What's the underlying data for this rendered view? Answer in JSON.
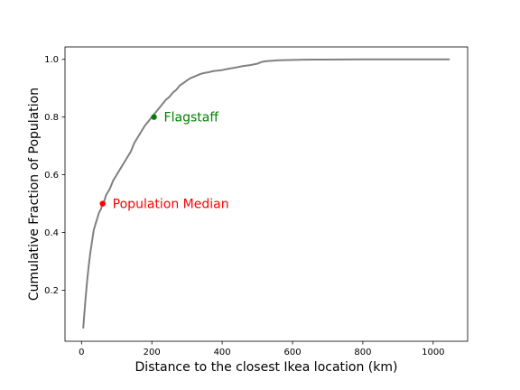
{
  "chart_data": {
    "type": "line",
    "title": "",
    "xlabel": "Distance to the closest Ikea location (km)",
    "ylabel": "Cumulative Fraction of Population",
    "xlim": [
      -47,
      1098
    ],
    "ylim": [
      0.023,
      1.043
    ],
    "xticks": [
      0,
      200,
      400,
      600,
      800,
      1000
    ],
    "yticks": [
      0.2,
      0.4,
      0.6,
      0.8,
      1.0
    ],
    "xtick_labels": [
      "0",
      "200",
      "400",
      "600",
      "800",
      "1000"
    ],
    "ytick_labels": [
      "0.2",
      "0.4",
      "0.6",
      "0.8",
      "1.0"
    ],
    "grid": false,
    "series": [
      {
        "color": "#808080",
        "x": [
          5,
          10,
          15,
          20,
          25,
          30,
          35,
          40,
          45,
          50,
          55,
          60,
          65,
          70,
          80,
          90,
          100,
          110,
          120,
          130,
          140,
          150,
          160,
          170,
          180,
          190,
          200,
          210,
          220,
          230,
          240,
          250,
          260,
          270,
          280,
          290,
          300,
          310,
          320,
          330,
          340,
          350,
          360,
          370,
          380,
          400,
          420,
          440,
          460,
          480,
          500,
          510,
          520,
          530,
          540,
          560,
          600,
          650,
          700,
          800,
          900,
          1000,
          1045
        ],
        "y": [
          0.07,
          0.15,
          0.22,
          0.28,
          0.33,
          0.37,
          0.41,
          0.43,
          0.45,
          0.47,
          0.48,
          0.5,
          0.51,
          0.53,
          0.55,
          0.58,
          0.6,
          0.62,
          0.64,
          0.66,
          0.68,
          0.71,
          0.73,
          0.75,
          0.77,
          0.785,
          0.8,
          0.815,
          0.83,
          0.845,
          0.86,
          0.87,
          0.885,
          0.895,
          0.91,
          0.918,
          0.927,
          0.935,
          0.94,
          0.945,
          0.95,
          0.953,
          0.955,
          0.958,
          0.96,
          0.963,
          0.968,
          0.972,
          0.977,
          0.98,
          0.985,
          0.99,
          0.993,
          0.994,
          0.995,
          0.997,
          0.998,
          0.999,
          0.999,
          1.0,
          1.0,
          1.0,
          1.0
        ]
      }
    ],
    "annotations": [
      {
        "label": "Population Median",
        "x": 60,
        "y": 0.5,
        "color": "#ff0000"
      },
      {
        "label": "Flagstaff",
        "x": 206,
        "y": 0.8,
        "color": "#008000"
      }
    ]
  }
}
